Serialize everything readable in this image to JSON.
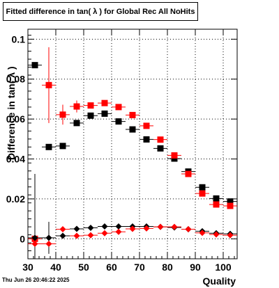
{
  "title": "Fitted difference in tan( λ ) for Global Rec All NoHits",
  "timestamp": "Thu Jun 26 20:46:22 2025",
  "chart_data": {
    "type": "scatter",
    "title": "Fitted difference in tan( λ ) for Global Rec All NoHits",
    "xlabel": "Quality",
    "ylabel": "Difference in tan( λ )",
    "xlim": [
      30,
      105
    ],
    "ylim": [
      -0.01,
      0.105
    ],
    "x_ticks": [
      30,
      40,
      50,
      60,
      70,
      80,
      90,
      100
    ],
    "y_ticks": [
      0,
      0.02,
      0.04,
      0.06,
      0.08,
      0.1
    ],
    "y_tick_labels": [
      "0",
      "0.02",
      "0.04",
      "0.06",
      "0.08",
      "0.1"
    ],
    "grid": true,
    "x": [
      32.5,
      37.5,
      42.5,
      47.5,
      52.5,
      57.5,
      62.5,
      67.5,
      72.5,
      77.5,
      82.5,
      87.5,
      92.5,
      97.5,
      102.5
    ],
    "series": [
      {
        "marker": "square",
        "color": "#000000",
        "values": [
          0.087,
          0.046,
          0.0465,
          0.058,
          0.0617,
          0.0627,
          0.0588,
          0.0548,
          0.0498,
          0.0453,
          0.0402,
          0.0337,
          0.0258,
          0.0202,
          0.0187
        ],
        "errors": [
          0.0,
          0.0,
          0.0,
          0.0,
          0.0,
          0.0,
          0.0,
          0.0,
          0.0,
          0.0,
          0.0,
          0.0,
          0.0,
          0.0,
          0.0
        ]
      },
      {
        "marker": "square",
        "color": "#ff0000",
        "values": [
          0.0,
          0.077,
          0.0622,
          0.0663,
          0.0668,
          0.068,
          0.066,
          0.062,
          0.0566,
          0.0497,
          0.0418,
          0.0325,
          0.0227,
          0.0172,
          0.0165
        ],
        "errors": [
          0.0,
          0.019,
          0.005,
          0.003,
          0.0,
          0.0,
          0.0,
          0.0,
          0.0,
          0.0,
          0.0,
          0.0,
          0.0,
          0.0,
          0.0
        ]
      },
      {
        "marker": "diamond",
        "color": "#000000",
        "values": [
          0.0005,
          0.0005,
          0.0015,
          0.005,
          0.0055,
          0.0062,
          0.0062,
          0.0062,
          0.0062,
          0.006,
          0.0057,
          0.0048,
          0.0038,
          0.0028,
          0.0025
        ],
        "errors": [
          0.032,
          0.008,
          0.0,
          0.0,
          0.0,
          0.0,
          0.0,
          0.0,
          0.0,
          0.0,
          0.0,
          0.0,
          0.0,
          0.0,
          0.0
        ]
      },
      {
        "marker": "diamond",
        "color": "#ff0000",
        "values": [
          -0.0025,
          -0.0025,
          0.0048,
          0.0015,
          0.0018,
          0.0028,
          0.0035,
          0.005,
          0.0052,
          0.006,
          0.006,
          0.0048,
          0.003,
          0.0022,
          0.0018
        ],
        "errors": [
          0.0,
          0.0,
          0.0,
          0.0,
          0.0,
          0.0,
          0.0,
          0.0,
          0.0,
          0.0,
          0.0,
          0.0,
          0.0,
          0.0,
          0.0
        ]
      }
    ]
  }
}
